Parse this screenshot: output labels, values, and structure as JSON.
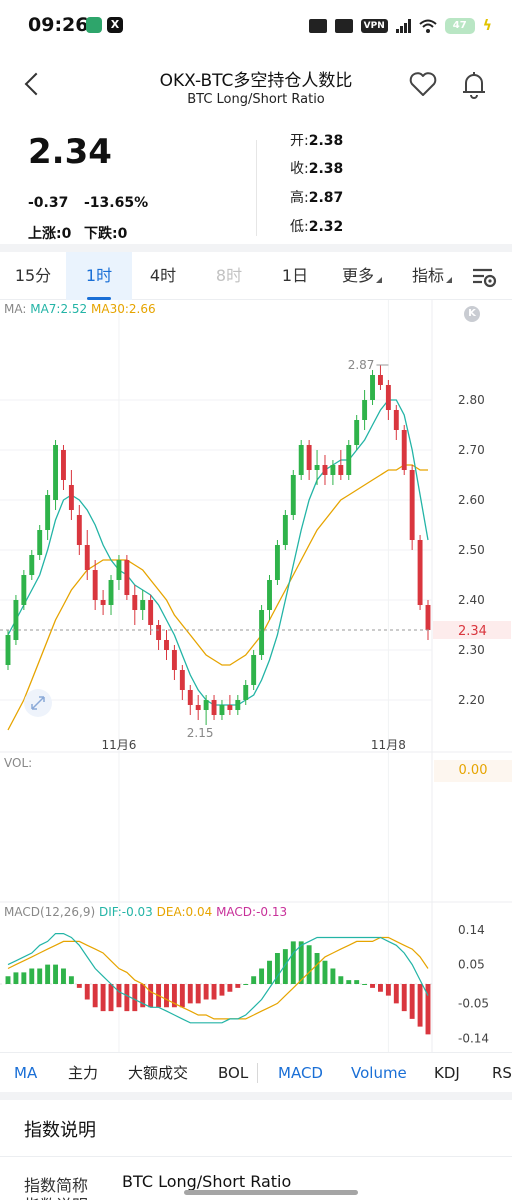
{
  "status_bar": {
    "time": "09:26",
    "x_app": "X",
    "vpn": "VPN",
    "battery": "47",
    "battery_level": 0.47
  },
  "header": {
    "title": "OKX-BTC多空持仓人数比",
    "subtitle": "BTC Long/Short Ratio",
    "back_icon": "chevron-left-icon",
    "favorite_icon": "heart-icon",
    "alert_icon": "bell-icon"
  },
  "quote": {
    "price": "2.34",
    "change": "-0.37",
    "change_pct": "-13.65%",
    "up": "上涨:0",
    "down": "下跌:0",
    "open_label": "开:",
    "open": "2.38",
    "close_label": "收:",
    "close": "2.38",
    "high_label": "高:",
    "high": "2.87",
    "low_label": "低:",
    "low": "2.32"
  },
  "tabs": [
    {
      "label": "15分",
      "state": "normal"
    },
    {
      "label": "1时",
      "state": "active"
    },
    {
      "label": "4时",
      "state": "normal"
    },
    {
      "label": "8时",
      "state": "disabled"
    },
    {
      "label": "1日",
      "state": "normal"
    },
    {
      "label": "更多",
      "state": "normal"
    },
    {
      "label": "指标",
      "state": "normal"
    }
  ],
  "legend": {
    "ma_label": "MA:",
    "ma7": "MA7:2.52",
    "ma30": "MA30:2.66",
    "vol_label": "VOL:",
    "vol_value": "0.00",
    "macd_label": "MACD(12,26,9)",
    "dif": "DIF:-0.03",
    "dea": "DEA:0.04",
    "macd": "MACD:-0.13",
    "kbadge": "K"
  },
  "colors": {
    "up": "#2fb34a",
    "down": "#d9363e",
    "ma7": "#23b4a6",
    "ma30": "#e6a400",
    "accent": "#1a6fd6"
  },
  "chart_data": [
    {
      "type": "candlestick",
      "title": "",
      "x_labels": [
        "11月6",
        "11月8"
      ],
      "y_ticks": [
        2.8,
        2.7,
        2.6,
        2.5,
        2.4,
        2.3,
        2.2
      ],
      "y_tick_labels": [
        "2.80",
        "2.70",
        "2.60",
        "2.50",
        "2.40",
        "2.30",
        "2.20"
      ],
      "ylim": [
        2.1,
        2.96
      ],
      "current_price": 2.34,
      "current_price_label": "2.34",
      "high_annotation": "2.87",
      "low_annotation": "2.15",
      "high_value": 2.87,
      "low_value": 2.15,
      "x_label_index": [
        14,
        48
      ],
      "high_index": 47,
      "low_index": 25,
      "ohlc": [
        [
          2.27,
          2.34,
          2.26,
          2.33
        ],
        [
          2.32,
          2.41,
          2.31,
          2.4
        ],
        [
          2.39,
          2.46,
          2.38,
          2.45
        ],
        [
          2.45,
          2.5,
          2.44,
          2.49
        ],
        [
          2.49,
          2.55,
          2.48,
          2.54
        ],
        [
          2.54,
          2.62,
          2.52,
          2.61
        ],
        [
          2.6,
          2.72,
          2.58,
          2.71
        ],
        [
          2.7,
          2.71,
          2.62,
          2.64
        ],
        [
          2.63,
          2.66,
          2.56,
          2.58
        ],
        [
          2.57,
          2.59,
          2.49,
          2.51
        ],
        [
          2.51,
          2.54,
          2.44,
          2.46
        ],
        [
          2.46,
          2.48,
          2.38,
          2.4
        ],
        [
          2.4,
          2.42,
          2.37,
          2.39
        ],
        [
          2.39,
          2.45,
          2.37,
          2.44
        ],
        [
          2.44,
          2.49,
          2.42,
          2.48
        ],
        [
          2.48,
          2.49,
          2.4,
          2.41
        ],
        [
          2.41,
          2.43,
          2.35,
          2.38
        ],
        [
          2.38,
          2.42,
          2.36,
          2.4
        ],
        [
          2.4,
          2.41,
          2.33,
          2.35
        ],
        [
          2.35,
          2.36,
          2.3,
          2.32
        ],
        [
          2.32,
          2.34,
          2.28,
          2.3
        ],
        [
          2.3,
          2.31,
          2.24,
          2.26
        ],
        [
          2.26,
          2.27,
          2.2,
          2.22
        ],
        [
          2.22,
          2.23,
          2.17,
          2.19
        ],
        [
          2.19,
          2.21,
          2.16,
          2.18
        ],
        [
          2.18,
          2.21,
          2.15,
          2.2
        ],
        [
          2.2,
          2.21,
          2.16,
          2.17
        ],
        [
          2.17,
          2.2,
          2.16,
          2.19
        ],
        [
          2.19,
          2.21,
          2.17,
          2.18
        ],
        [
          2.18,
          2.21,
          2.17,
          2.2
        ],
        [
          2.2,
          2.24,
          2.19,
          2.23
        ],
        [
          2.23,
          2.3,
          2.22,
          2.29
        ],
        [
          2.29,
          2.39,
          2.28,
          2.38
        ],
        [
          2.38,
          2.45,
          2.36,
          2.44
        ],
        [
          2.44,
          2.52,
          2.43,
          2.51
        ],
        [
          2.51,
          2.58,
          2.5,
          2.57
        ],
        [
          2.57,
          2.66,
          2.56,
          2.65
        ],
        [
          2.65,
          2.72,
          2.64,
          2.71
        ],
        [
          2.71,
          2.72,
          2.64,
          2.66
        ],
        [
          2.66,
          2.7,
          2.63,
          2.67
        ],
        [
          2.67,
          2.69,
          2.63,
          2.65
        ],
        [
          2.65,
          2.68,
          2.63,
          2.67
        ],
        [
          2.67,
          2.7,
          2.64,
          2.65
        ],
        [
          2.65,
          2.72,
          2.64,
          2.71
        ],
        [
          2.71,
          2.77,
          2.7,
          2.76
        ],
        [
          2.76,
          2.82,
          2.74,
          2.8
        ],
        [
          2.8,
          2.86,
          2.79,
          2.85
        ],
        [
          2.85,
          2.87,
          2.82,
          2.83
        ],
        [
          2.83,
          2.84,
          2.76,
          2.78
        ],
        [
          2.78,
          2.79,
          2.72,
          2.74
        ],
        [
          2.74,
          2.75,
          2.65,
          2.66
        ],
        [
          2.66,
          2.67,
          2.5,
          2.52
        ],
        [
          2.52,
          2.53,
          2.38,
          2.39
        ],
        [
          2.39,
          2.4,
          2.32,
          2.34
        ]
      ],
      "ma7": [
        2.33,
        2.36,
        2.39,
        2.42,
        2.45,
        2.5,
        2.56,
        2.6,
        2.61,
        2.6,
        2.58,
        2.55,
        2.51,
        2.48,
        2.46,
        2.45,
        2.43,
        2.42,
        2.41,
        2.39,
        2.36,
        2.33,
        2.29,
        2.25,
        2.22,
        2.2,
        2.19,
        2.19,
        2.19,
        2.19,
        2.2,
        2.21,
        2.24,
        2.28,
        2.33,
        2.4,
        2.47,
        2.54,
        2.6,
        2.64,
        2.66,
        2.67,
        2.68,
        2.68,
        2.7,
        2.72,
        2.75,
        2.78,
        2.8,
        2.8,
        2.77,
        2.7,
        2.61,
        2.52
      ],
      "ma30": [
        2.14,
        2.17,
        2.2,
        2.24,
        2.28,
        2.32,
        2.36,
        2.39,
        2.42,
        2.44,
        2.46,
        2.47,
        2.48,
        2.48,
        2.48,
        2.48,
        2.47,
        2.46,
        2.44,
        2.42,
        2.4,
        2.37,
        2.35,
        2.33,
        2.31,
        2.29,
        2.28,
        2.27,
        2.27,
        2.28,
        2.29,
        2.31,
        2.33,
        2.36,
        2.39,
        2.42,
        2.45,
        2.48,
        2.51,
        2.54,
        2.56,
        2.58,
        2.6,
        2.61,
        2.62,
        2.63,
        2.64,
        2.65,
        2.66,
        2.66,
        2.67,
        2.67,
        2.66,
        2.66
      ]
    },
    {
      "type": "bar",
      "title": "MACD",
      "y_ticks": [
        0.14,
        0.05,
        -0.05,
        -0.14
      ],
      "y_tick_labels": [
        "0.14",
        "0.05",
        "-0.05",
        "-0.14"
      ],
      "ylim": [
        -0.16,
        0.16
      ],
      "histogram": [
        0.02,
        0.03,
        0.03,
        0.04,
        0.04,
        0.05,
        0.05,
        0.04,
        0.02,
        -0.01,
        -0.04,
        -0.06,
        -0.07,
        -0.07,
        -0.06,
        -0.07,
        -0.07,
        -0.06,
        -0.06,
        -0.06,
        -0.06,
        -0.06,
        -0.06,
        -0.05,
        -0.05,
        -0.04,
        -0.04,
        -0.03,
        -0.02,
        -0.01,
        0.0,
        0.02,
        0.04,
        0.06,
        0.08,
        0.09,
        0.11,
        0.11,
        0.1,
        0.08,
        0.06,
        0.04,
        0.02,
        0.01,
        0.01,
        0.0,
        -0.01,
        -0.02,
        -0.03,
        -0.05,
        -0.07,
        -0.09,
        -0.11,
        -0.13
      ],
      "dif": [
        0.05,
        0.06,
        0.07,
        0.08,
        0.1,
        0.11,
        0.13,
        0.13,
        0.12,
        0.1,
        0.07,
        0.04,
        0.02,
        0.0,
        -0.02,
        -0.03,
        -0.04,
        -0.05,
        -0.06,
        -0.06,
        -0.07,
        -0.08,
        -0.09,
        -0.1,
        -0.1,
        -0.1,
        -0.1,
        -0.1,
        -0.09,
        -0.09,
        -0.08,
        -0.06,
        -0.04,
        -0.01,
        0.02,
        0.05,
        0.08,
        0.1,
        0.11,
        0.12,
        0.12,
        0.12,
        0.12,
        0.12,
        0.12,
        0.12,
        0.12,
        0.12,
        0.11,
        0.1,
        0.08,
        0.05,
        0.01,
        -0.03
      ],
      "dea": [
        0.04,
        0.05,
        0.06,
        0.07,
        0.08,
        0.09,
        0.1,
        0.11,
        0.11,
        0.11,
        0.1,
        0.09,
        0.08,
        0.06,
        0.04,
        0.03,
        0.01,
        0.0,
        -0.02,
        -0.03,
        -0.04,
        -0.05,
        -0.06,
        -0.07,
        -0.08,
        -0.08,
        -0.09,
        -0.09,
        -0.09,
        -0.09,
        -0.09,
        -0.08,
        -0.07,
        -0.06,
        -0.05,
        -0.03,
        -0.01,
        0.01,
        0.03,
        0.05,
        0.07,
        0.08,
        0.09,
        0.1,
        0.11,
        0.11,
        0.11,
        0.12,
        0.12,
        0.11,
        0.1,
        0.09,
        0.07,
        0.04
      ]
    }
  ],
  "indicators": [
    {
      "label": "MA",
      "on": true
    },
    {
      "label": "主力",
      "on": false
    },
    {
      "label": "大额成交",
      "on": false
    },
    {
      "label": "BOL",
      "on": false
    },
    {
      "label": "MACD",
      "on": true
    },
    {
      "label": "Volume",
      "on": true
    },
    {
      "label": "KDJ",
      "on": false
    },
    {
      "label": "RS",
      "on": false
    }
  ],
  "info": {
    "section_title": "指数说明",
    "short_name_label": "指数简称",
    "short_name_value": "BTC Long/Short Ratio",
    "desc_label": "指数说明"
  }
}
